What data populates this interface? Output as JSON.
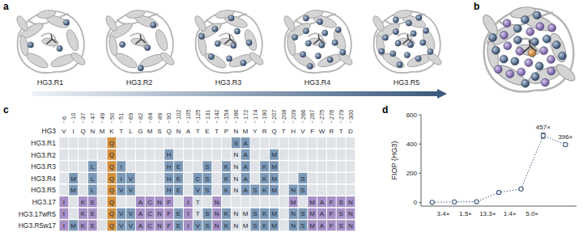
{
  "panels": {
    "a": {
      "label": "a",
      "structures": [
        "HG3.R1",
        "HG3.R2",
        "HG3.R3",
        "HG3.R4",
        "HG3.R5"
      ]
    },
    "b": {
      "label": "b"
    },
    "c": {
      "label": "c",
      "columns": [
        6,
        10,
        37,
        47,
        49,
        50,
        51,
        69,
        82,
        84,
        89,
        90,
        102,
        105,
        125,
        131,
        142,
        154,
        166,
        172,
        174,
        190,
        207,
        208,
        209,
        266,
        267,
        275,
        276,
        279,
        300
      ],
      "rows": [
        {
          "name": "HG3",
          "cells": [
            "V",
            "I",
            "Q",
            "N",
            "M",
            "K",
            "T",
            "L",
            "G",
            "M",
            "S",
            "Q",
            "N",
            "A",
            "T",
            "E",
            "T",
            "P",
            "N",
            "M",
            "Y",
            "R",
            "Q",
            "T",
            "H",
            "V",
            "F",
            "W",
            "R",
            "T",
            "D"
          ]
        },
        {
          "name": "HG3.R1",
          "cells": [
            null,
            null,
            null,
            null,
            null,
            "Q",
            null,
            null,
            null,
            null,
            null,
            null,
            null,
            null,
            null,
            null,
            null,
            null,
            "S",
            "A",
            null,
            null,
            null,
            null,
            null,
            null,
            null,
            null,
            null,
            null,
            null
          ]
        },
        {
          "name": "HG3.R2",
          "cells": [
            null,
            null,
            null,
            null,
            null,
            "Q",
            null,
            null,
            null,
            null,
            null,
            "H",
            null,
            null,
            null,
            null,
            null,
            null,
            "N",
            "A",
            null,
            null,
            "M",
            null,
            null,
            null,
            null,
            null,
            null,
            null,
            null
          ]
        },
        {
          "name": "HG3.R3",
          "cells": [
            null,
            null,
            null,
            "L",
            null,
            "Q",
            "I",
            null,
            null,
            null,
            null,
            "H",
            "E",
            null,
            null,
            "S",
            null,
            "K",
            "N",
            "A",
            null,
            "K",
            "M",
            null,
            null,
            null,
            null,
            null,
            null,
            null,
            null
          ]
        },
        {
          "name": "HG3.R4",
          "cells": [
            null,
            "M",
            null,
            "L",
            null,
            "Q",
            "I",
            "V",
            null,
            null,
            null,
            "H",
            "E",
            null,
            "C",
            "S",
            null,
            "K",
            "N",
            "A",
            null,
            "K",
            "M",
            null,
            null,
            "S",
            null,
            null,
            null,
            null,
            null
          ]
        },
        {
          "name": "HG3.R5",
          "cells": [
            null,
            "M",
            null,
            "L",
            null,
            "Q",
            "V",
            "V",
            null,
            null,
            null,
            "H",
            "E",
            null,
            "V",
            "S",
            null,
            "K",
            "N",
            "A",
            "S",
            "K",
            "M",
            null,
            "N",
            "S",
            null,
            null,
            null,
            null,
            null
          ]
        },
        {
          "name": "HG3.17",
          "cells": [
            "I",
            null,
            "K",
            "E",
            null,
            "Q",
            null,
            null,
            "A",
            "C",
            "N",
            "F",
            null,
            "I",
            "T",
            null,
            "N",
            null,
            null,
            null,
            null,
            null,
            null,
            null,
            "M",
            null,
            "M",
            "A",
            "F",
            "S",
            "N"
          ]
        },
        {
          "name": "HG3.17wR5",
          "cells": [
            "I",
            null,
            "K",
            "E",
            null,
            "Q",
            "V",
            "V",
            "A",
            "C",
            "N",
            "F",
            "E",
            "I",
            "T",
            "S",
            "N",
            "K",
            "N",
            "M",
            "S",
            "K",
            "M",
            null,
            "N",
            "S",
            "M",
            "A",
            "F",
            "S",
            "N"
          ]
        },
        {
          "name": "HG3.R5w17",
          "cells": [
            "I",
            "M",
            "K",
            "E",
            null,
            "Q",
            "V",
            "V",
            "A",
            "C",
            "N",
            "F",
            "E",
            "I",
            "V",
            "S",
            "N",
            "K",
            "N",
            "M",
            "S",
            "K",
            "M",
            null,
            "N",
            "S",
            "M",
            "A",
            "F",
            "S",
            "N"
          ]
        }
      ]
    },
    "d": {
      "label": "d"
    }
  },
  "chart_data": {
    "type": "line",
    "categories": [
      null,
      null,
      null,
      null,
      null,
      null,
      null
    ],
    "values": [
      1,
      3.4,
      5.1,
      68,
      92,
      457,
      396
    ],
    "errors": [
      0.3,
      0.6,
      1.0,
      5,
      6,
      18,
      8
    ],
    "ylim": [
      -25,
      600
    ],
    "yticks": [
      0,
      200,
      400,
      600
    ],
    "y_label": "FIOP (HG3)",
    "annotations": [
      "3.4×",
      "1.5×",
      "13.3×",
      "1.4×",
      "5.0×",
      "457×",
      "396×"
    ],
    "color": "#3d5a80",
    "marker": "circle",
    "line_style": "dotted",
    "tick_labels": "y"
  }
}
